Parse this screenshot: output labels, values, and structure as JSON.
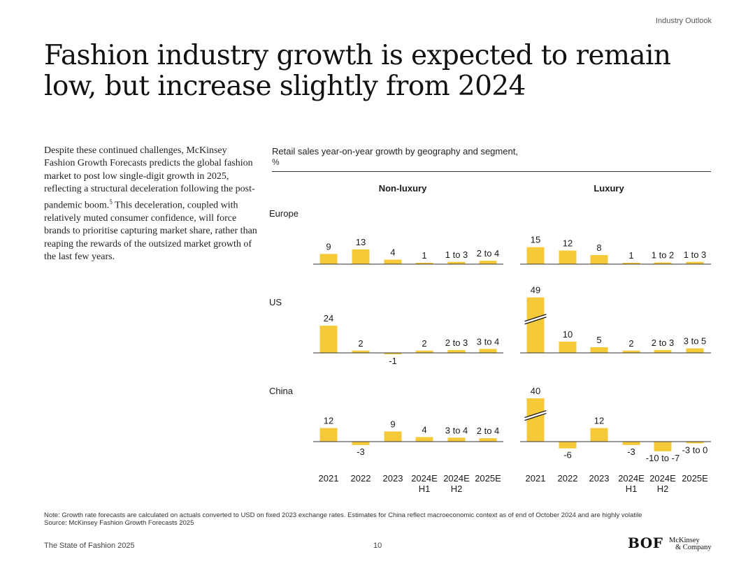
{
  "header": {
    "section": "Industry Outlook"
  },
  "title": "Fashion industry growth is expected to remain low, but increase slightly from 2024",
  "body": {
    "text_before": "Despite these continued challenges, McKinsey Fashion Growth Forecasts predicts the global fashion market to post low single-digit growth in 2025, reflecting a structural deceleration following the post-pandemic boom.",
    "footnote_ref": "5",
    "text_after": " This deceleration, coupled with relatively muted consumer confidence, will force brands to prioritise capturing market share, rather than reaping the rewards of the outsized market growth of the last few years."
  },
  "chart_data": {
    "type": "bar",
    "title": "Retail sales year-on-year growth by geography and segment,",
    "unit": "%",
    "segments": [
      "Non-luxury",
      "Luxury"
    ],
    "regions": [
      "Europe",
      "US",
      "China"
    ],
    "categories": [
      {
        "line1": "2021",
        "line2": ""
      },
      {
        "line1": "2022",
        "line2": ""
      },
      {
        "line1": "2023",
        "line2": ""
      },
      {
        "line1": "2024E",
        "line2": "H1"
      },
      {
        "line1": "2024E",
        "line2": "H2"
      },
      {
        "line1": "2025E",
        "line2": ""
      }
    ],
    "panels": [
      {
        "region": "Europe",
        "segment": "Non-luxury",
        "values": [
          9,
          13,
          4,
          1,
          2,
          3
        ],
        "labels": [
          "9",
          "13",
          "4",
          "1",
          "1 to 3",
          "2 to 4"
        ]
      },
      {
        "region": "Europe",
        "segment": "Luxury",
        "values": [
          15,
          12,
          8,
          1,
          1.5,
          2
        ],
        "labels": [
          "15",
          "12",
          "8",
          "1",
          "1 to 2",
          "1 to 3"
        ]
      },
      {
        "region": "US",
        "segment": "Non-luxury",
        "values": [
          24,
          2,
          -1,
          2,
          2.5,
          3.5
        ],
        "labels": [
          "24",
          "2",
          "-1",
          "2",
          "2 to 3",
          "3 to 4"
        ]
      },
      {
        "region": "US",
        "segment": "Luxury",
        "values": [
          49,
          10,
          5,
          2,
          2.5,
          4
        ],
        "labels": [
          "49",
          "10",
          "5",
          "2",
          "2 to 3",
          "3 to 5"
        ],
        "broken_axis_bar": 0
      },
      {
        "region": "China",
        "segment": "Non-luxury",
        "values": [
          12,
          -3,
          9,
          4,
          3.5,
          3
        ],
        "labels": [
          "12",
          "-3",
          "9",
          "4",
          "3 to 4",
          "2 to 4"
        ]
      },
      {
        "region": "China",
        "segment": "Luxury",
        "values": [
          40,
          -6,
          12,
          -3,
          -8.5,
          -1.5
        ],
        "labels": [
          "40",
          "-6",
          "12",
          "-3",
          "-10 to -7",
          "-3 to 0"
        ],
        "broken_axis_bar": 0
      }
    ],
    "bar_color": "#f5c937",
    "axis_color": "#333333"
  },
  "note": "Note: Growth rate forecasts are calculated on actuals converted to USD on fixed 2023 exchange rates. Estimates for China reflect macroeconomic context as of end of October 2024 and are highly volatile",
  "source": "Source: McKinsey Fashion Growth Forecasts 2025",
  "footer": {
    "publication": "The State of Fashion 2025",
    "page": "10",
    "logo_bof": "BOF",
    "logo_mck_line1": "McKinsey",
    "logo_mck_line2": "& Company"
  }
}
